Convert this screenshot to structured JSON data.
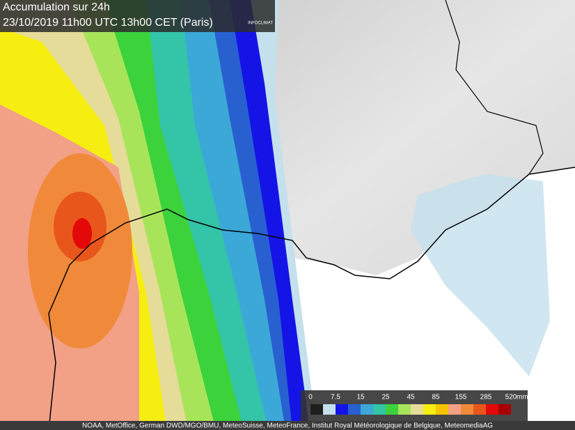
{
  "header": {
    "title": "Accumulation sur 24h",
    "subtitle": "23/10/2019  11h00 UTC  13h00 CET (Paris)",
    "logo": "INFOCLIMAT"
  },
  "legend": {
    "colors": [
      "#1e1e1e",
      "#c4e0ec",
      "#1414e6",
      "#2860d0",
      "#3ca8d8",
      "#34c4a8",
      "#3cd23c",
      "#a8e45a",
      "#e6dc9a",
      "#f6ee10",
      "#f6c400",
      "#f2a086",
      "#f08a3a",
      "#e8561c",
      "#e40808",
      "#a80000"
    ],
    "ticks": [
      0,
      7.5,
      15,
      25,
      45,
      85,
      155,
      285,
      520
    ],
    "unit": "mm"
  },
  "footer": {
    "credits": "NOAA, MetOffice, German DWD/MGO/BMU, MeteoSuisse, MeteoFrance, Institut Royal Météorologique de Belgique, MeteomediaAG"
  }
}
